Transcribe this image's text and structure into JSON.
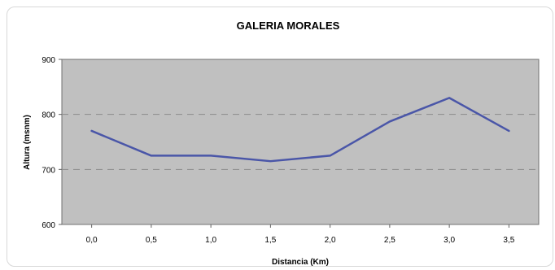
{
  "chart_data": {
    "type": "line",
    "title": "GALERIA MORALES",
    "xlabel": "Distancia (Km)",
    "ylabel": "Altura (msnm)",
    "categories": [
      "0,0",
      "0,5",
      "1,0",
      "1,5",
      "2,0",
      "2,5",
      "3,0",
      "3,5"
    ],
    "series": [
      {
        "values": [
          770,
          725,
          725,
          715,
          725,
          787,
          830,
          770
        ]
      }
    ],
    "ylim": [
      600,
      900
    ],
    "yticks": [
      600,
      700,
      800,
      900
    ],
    "grid": true,
    "legend": "none",
    "colors": {
      "plot_background": "#c0c0c0",
      "line": "#4a56a8",
      "gridline": "#8a8a8a",
      "axis": "#606060"
    }
  }
}
